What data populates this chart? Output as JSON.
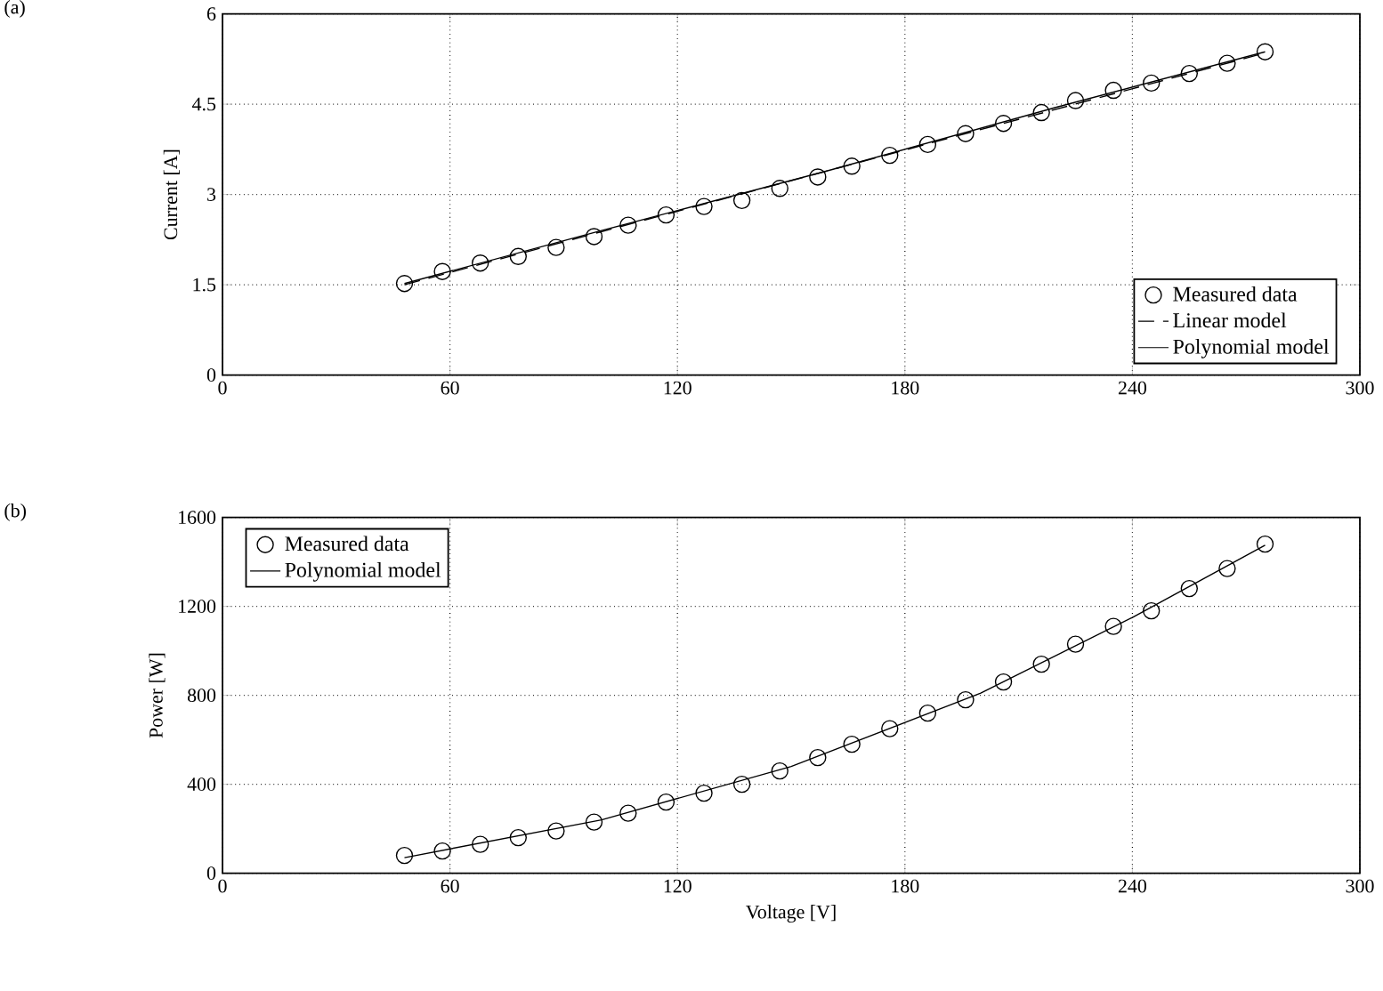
{
  "chart_data": [
    {
      "type": "line",
      "ylabel": "Current [A]",
      "annotations": [
        "(a)"
      ],
      "xlim": [
        0,
        300
      ],
      "xticks": [
        0,
        60,
        120,
        180,
        240,
        300
      ],
      "ylim": [
        0,
        6
      ],
      "yticks": [
        0,
        1.5,
        3,
        4.5,
        6
      ],
      "grid": true,
      "legend": "bottom right",
      "series": [
        {
          "name": "Measured data",
          "type": "scatter",
          "marker": "circle",
          "color": "#000000",
          "x": [
            48,
            58,
            68,
            78,
            88,
            98,
            107,
            117,
            127,
            137,
            147,
            157,
            166,
            176,
            186,
            196,
            206,
            216,
            225,
            235,
            245,
            255,
            265,
            275
          ],
          "values": [
            1.52,
            1.72,
            1.86,
            1.97,
            2.12,
            2.3,
            2.49,
            2.66,
            2.8,
            2.9,
            3.1,
            3.29,
            3.47,
            3.65,
            3.83,
            4.01,
            4.18,
            4.36,
            4.56,
            4.73,
            4.85,
            5.01,
            5.18,
            5.37
          ]
        },
        {
          "name": "Linear model",
          "type": "line",
          "line_style": "dashed",
          "color": "#000000",
          "x": [
            48,
            275
          ],
          "values": [
            1.5,
            5.35
          ]
        },
        {
          "name": "Polynomial model",
          "type": "line",
          "line_style": "solid",
          "color": "#000000",
          "x": [
            48,
            100,
            160,
            220,
            275
          ],
          "values": [
            1.52,
            2.4,
            3.4,
            4.45,
            5.37
          ]
        }
      ]
    },
    {
      "type": "line",
      "xlabel": "Voltage [V]",
      "ylabel": "Power [W]",
      "annotations": [
        "(b)"
      ],
      "xlim": [
        0,
        300
      ],
      "xticks": [
        0,
        60,
        120,
        180,
        240,
        300
      ],
      "ylim": [
        0,
        1600
      ],
      "yticks": [
        0,
        400,
        800,
        1200,
        1600
      ],
      "grid": true,
      "legend": "top left",
      "series": [
        {
          "name": "Measured data",
          "type": "scatter",
          "marker": "circle",
          "color": "#000000",
          "x": [
            48,
            58,
            68,
            78,
            88,
            98,
            107,
            117,
            127,
            137,
            147,
            157,
            166,
            176,
            186,
            196,
            206,
            216,
            225,
            235,
            245,
            255,
            265,
            275
          ],
          "values": [
            80,
            100,
            130,
            160,
            190,
            230,
            270,
            320,
            360,
            400,
            460,
            520,
            580,
            650,
            720,
            780,
            860,
            940,
            1030,
            1110,
            1180,
            1280,
            1370,
            1480
          ]
        },
        {
          "name": "Polynomial model",
          "type": "line",
          "line_style": "solid",
          "color": "#000000",
          "x": [
            48,
            100,
            150,
            200,
            240,
            275
          ],
          "values": [
            70,
            240,
            480,
            810,
            1150,
            1475
          ]
        }
      ]
    }
  ]
}
